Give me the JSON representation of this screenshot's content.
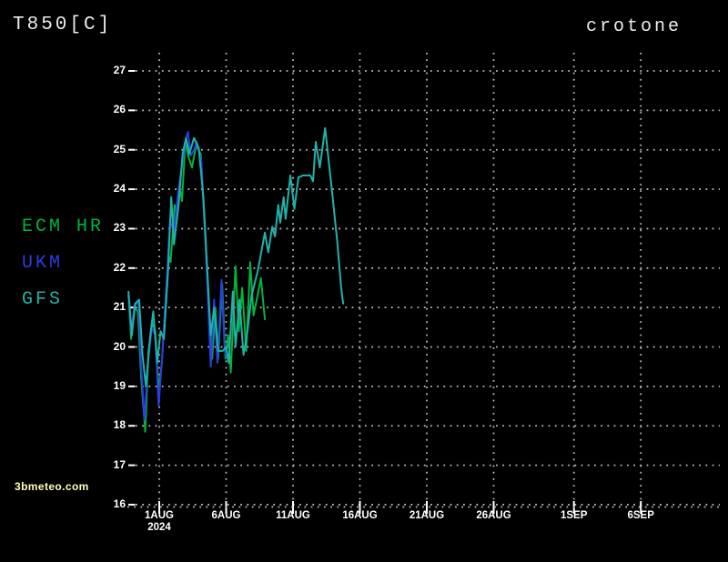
{
  "header": {
    "title": "T850[C]",
    "location": "crotone"
  },
  "watermark": "3bmeteo.com",
  "colors": {
    "background": "#000000",
    "grid": "#b8b8b8",
    "axis_text": "#ffffff",
    "header_text": "#ececec",
    "watermark_text": "#ffffbe",
    "ecm_hr": "#00b43c",
    "ukm": "#2c3ce0",
    "gfs": "#20b2aa"
  },
  "chart_data": {
    "type": "line",
    "title": "T850[C]",
    "subtitle": "crotone",
    "xlabel": "",
    "ylabel": "",
    "grid": "dotted",
    "legend_position": "left",
    "ylim": [
      16,
      27
    ],
    "y_ticks": [
      27,
      26,
      25,
      24,
      23,
      22,
      21,
      20,
      19,
      18,
      17,
      16
    ],
    "x_axis_unit": "days from 1AUG 2024",
    "x_ticks": [
      {
        "label": "1AUG",
        "sublabel": "2024",
        "day": 0
      },
      {
        "label": "6AUG",
        "sublabel": "",
        "day": 5
      },
      {
        "label": "11AUG",
        "sublabel": "",
        "day": 10
      },
      {
        "label": "16AUG",
        "sublabel": "",
        "day": 15
      },
      {
        "label": "21AUG",
        "sublabel": "",
        "day": 20
      },
      {
        "label": "26AUG",
        "sublabel": "",
        "day": 25
      },
      {
        "label": "1SEP",
        "sublabel": "",
        "day": 31
      },
      {
        "label": "6SEP",
        "sublabel": "",
        "day": 36
      }
    ],
    "series": [
      {
        "name": "ECM HR",
        "color": "#00b43c",
        "points": [
          [
            -2.3,
            21.3
          ],
          [
            -2.1,
            20.2
          ],
          [
            -1.85,
            21.0
          ],
          [
            -1.6,
            20.9
          ],
          [
            -1.35,
            19.2
          ],
          [
            -1.05,
            17.85
          ],
          [
            -0.8,
            19.9
          ],
          [
            -0.5,
            20.6
          ],
          [
            -0.3,
            20.4
          ],
          [
            -0.05,
            18.9
          ],
          [
            0.2,
            19.6
          ],
          [
            0.5,
            21.3
          ],
          [
            0.7,
            22.3
          ],
          [
            0.85,
            22.15
          ],
          [
            1.15,
            23.6
          ],
          [
            1.3,
            23.4
          ],
          [
            1.55,
            24.0
          ],
          [
            1.7,
            23.7
          ],
          [
            1.95,
            25.2
          ],
          [
            2.2,
            24.8
          ],
          [
            2.45,
            24.55
          ],
          [
            2.75,
            25.1
          ],
          [
            3.1,
            24.9
          ],
          [
            3.45,
            22.7
          ],
          [
            3.75,
            20.6
          ],
          [
            3.95,
            19.7
          ],
          [
            4.2,
            21.0
          ],
          [
            4.4,
            19.7
          ],
          [
            4.7,
            21.6
          ],
          [
            4.95,
            19.7
          ],
          [
            5.15,
            20.3
          ],
          [
            5.35,
            19.35
          ],
          [
            5.7,
            22.05
          ],
          [
            5.95,
            20.4
          ],
          [
            6.2,
            21.5
          ],
          [
            6.5,
            19.9
          ],
          [
            6.8,
            22.15
          ],
          [
            7.05,
            20.8
          ],
          [
            7.35,
            21.3
          ],
          [
            7.6,
            21.75
          ],
          [
            7.9,
            20.7
          ]
        ]
      },
      {
        "name": "UKM",
        "color": "#2c3ce0",
        "points": [
          [
            -2.3,
            21.35
          ],
          [
            -2.1,
            20.4
          ],
          [
            -1.85,
            21.05
          ],
          [
            -1.55,
            21.15
          ],
          [
            -1.35,
            19.5
          ],
          [
            -1.1,
            18.15
          ],
          [
            -0.85,
            19.6
          ],
          [
            -0.55,
            20.5
          ],
          [
            -0.3,
            20.3
          ],
          [
            -0.05,
            18.5
          ],
          [
            0.25,
            19.9
          ],
          [
            0.55,
            21.6
          ],
          [
            0.8,
            23.2
          ],
          [
            1.1,
            22.9
          ],
          [
            1.4,
            23.9
          ],
          [
            1.7,
            24.6
          ],
          [
            2.0,
            25.3
          ],
          [
            2.15,
            25.45
          ],
          [
            2.35,
            24.85
          ],
          [
            2.6,
            25.0
          ],
          [
            2.8,
            25.2
          ],
          [
            3.15,
            24.7
          ],
          [
            3.5,
            22.4
          ],
          [
            3.85,
            19.5
          ],
          [
            4.1,
            21.2
          ],
          [
            4.35,
            19.6
          ],
          [
            4.65,
            21.7
          ],
          [
            4.9,
            19.9
          ],
          [
            5.1,
            19.7
          ]
        ]
      },
      {
        "name": "GFS",
        "color": "#20b2aa",
        "points": [
          [
            -2.3,
            21.4
          ],
          [
            -2.05,
            20.3
          ],
          [
            -1.8,
            21.1
          ],
          [
            -1.5,
            21.2
          ],
          [
            -1.25,
            19.8
          ],
          [
            -1.0,
            19.0
          ],
          [
            -0.7,
            20.2
          ],
          [
            -0.45,
            20.9
          ],
          [
            -0.15,
            19.6
          ],
          [
            0.1,
            20.4
          ],
          [
            0.35,
            20.2
          ],
          [
            0.65,
            21.9
          ],
          [
            0.9,
            23.8
          ],
          [
            1.1,
            22.6
          ],
          [
            1.45,
            23.6
          ],
          [
            1.75,
            24.9
          ],
          [
            2.0,
            25.3
          ],
          [
            2.25,
            24.9
          ],
          [
            2.6,
            25.3
          ],
          [
            2.95,
            25.05
          ],
          [
            3.3,
            23.8
          ],
          [
            3.6,
            21.9
          ],
          [
            3.85,
            20.3
          ],
          [
            4.1,
            21.0
          ],
          [
            4.4,
            19.9
          ],
          [
            4.75,
            19.9
          ],
          [
            5.0,
            20.0
          ],
          [
            5.2,
            19.6
          ],
          [
            5.5,
            21.4
          ],
          [
            5.7,
            20.0
          ],
          [
            6.0,
            21.2
          ],
          [
            6.3,
            19.8
          ],
          [
            6.6,
            20.4
          ],
          [
            6.9,
            21.3
          ],
          [
            7.35,
            21.9
          ],
          [
            7.6,
            22.35
          ],
          [
            7.9,
            22.9
          ],
          [
            8.15,
            22.4
          ],
          [
            8.45,
            23.05
          ],
          [
            8.65,
            22.8
          ],
          [
            8.9,
            23.6
          ],
          [
            9.05,
            23.15
          ],
          [
            9.3,
            23.8
          ],
          [
            9.45,
            23.25
          ],
          [
            9.8,
            24.35
          ],
          [
            10.1,
            23.5
          ],
          [
            10.4,
            24.3
          ],
          [
            10.75,
            24.35
          ],
          [
            11.3,
            24.35
          ],
          [
            11.5,
            24.2
          ],
          [
            11.7,
            25.2
          ],
          [
            12.0,
            24.55
          ],
          [
            12.4,
            25.55
          ],
          [
            12.9,
            24.0
          ],
          [
            13.3,
            22.7
          ],
          [
            13.6,
            21.5
          ],
          [
            13.75,
            21.1
          ]
        ]
      }
    ]
  }
}
